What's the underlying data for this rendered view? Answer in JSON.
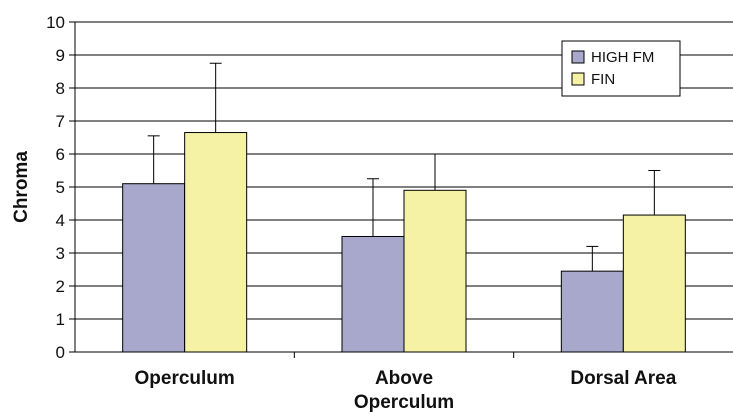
{
  "chart_data": {
    "type": "bar",
    "title": "",
    "xlabel": "",
    "ylabel": "Chroma",
    "ylim": [
      0,
      10
    ],
    "yticks": [
      0,
      1,
      2,
      3,
      4,
      5,
      6,
      7,
      8,
      9,
      10
    ],
    "grid": "horizontal",
    "legend_position": "top-right",
    "categories": [
      [
        "Operculum"
      ],
      [
        "Above",
        "Operculum"
      ],
      [
        "Dorsal Area"
      ]
    ],
    "series": [
      {
        "name": "HIGH FM",
        "color": "#a8a8cc",
        "values": [
          5.1,
          3.5,
          2.45
        ],
        "error_upper": [
          6.55,
          5.25,
          3.2
        ]
      },
      {
        "name": "FIN",
        "color": "#f5f2a6",
        "values": [
          6.65,
          4.9,
          4.15
        ],
        "error_upper": [
          8.75,
          6.0,
          5.5
        ]
      }
    ]
  }
}
